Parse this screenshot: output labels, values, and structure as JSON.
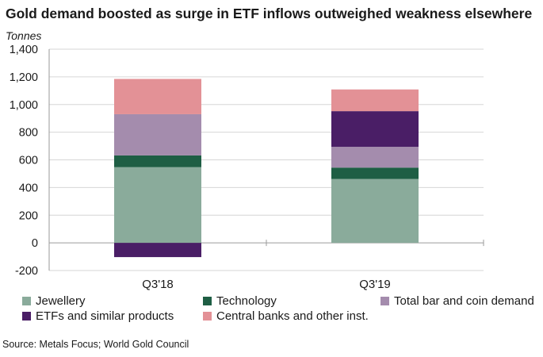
{
  "chart_data": {
    "type": "bar",
    "stacked": true,
    "title": "Gold demand boosted as surge in ETF inflows outweighed weakness elsewhere",
    "ylabel": "Tonnes",
    "xlabel": "",
    "ylim": [
      -200,
      1400
    ],
    "yticks": [
      -200,
      0,
      200,
      400,
      600,
      800,
      1000,
      1200,
      1400
    ],
    "ytick_labels": [
      "-200",
      "0",
      "200",
      "400",
      "600",
      "800",
      "1,000",
      "1,200",
      "1,400"
    ],
    "categories": [
      "Q3'18",
      "Q3'19"
    ],
    "grid": true,
    "legend_position": "bottom",
    "series": [
      {
        "name": "Jewellery",
        "color": "#8aab9b",
        "values": [
          547,
          462
        ]
      },
      {
        "name": "Technology",
        "color": "#1e5e44",
        "values": [
          85,
          82
        ]
      },
      {
        "name": "Total bar and coin demand",
        "color": "#a48cad",
        "values": [
          298,
          150
        ]
      },
      {
        "name": "ETFs and similar products",
        "color": "#4a1e66",
        "values": [
          -103,
          258
        ]
      },
      {
        "name": "Central banks and other inst.",
        "color": "#e39196",
        "values": [
          255,
          157
        ]
      }
    ]
  },
  "source": "Source: Metals Focus; World Gold Council"
}
